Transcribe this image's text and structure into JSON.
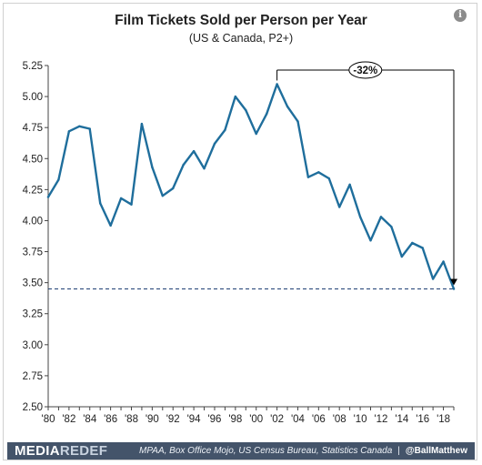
{
  "header": {
    "info_icon": "info-icon",
    "info_glyph": "i"
  },
  "chart_data": {
    "type": "line",
    "title": "Film Tickets Sold per Person per Year",
    "subtitle": "(US & Canada, P2+)",
    "xlabel": "",
    "ylabel": "",
    "xlim": [
      1980,
      2019
    ],
    "ylim": [
      2.5,
      5.25
    ],
    "yticks": [
      2.5,
      2.75,
      3.0,
      3.25,
      3.5,
      3.75,
      4.0,
      4.25,
      4.5,
      4.75,
      5.0,
      5.25
    ],
    "ytick_labels": [
      "2.50",
      "2.75",
      "3.00",
      "3.25",
      "3.50",
      "3.75",
      "4.00",
      "4.25",
      "4.50",
      "4.75",
      "5.00",
      "5.25"
    ],
    "xticks": [
      1980,
      1982,
      1984,
      1986,
      1988,
      1990,
      1992,
      1994,
      1996,
      1998,
      2000,
      2002,
      2004,
      2006,
      2008,
      2010,
      2012,
      2014,
      2016,
      2018
    ],
    "xtick_labels": [
      "'80",
      "'82",
      "'84",
      "'86",
      "'88",
      "'90",
      "'92",
      "'94",
      "'96",
      "'98",
      "'00",
      "'02",
      "'04",
      "'06",
      "'08",
      "'10",
      "'12",
      "'14",
      "'16",
      "'18"
    ],
    "grid": false,
    "series": [
      {
        "color": "#1f6e9c",
        "x": [
          1980,
          1981,
          1982,
          1983,
          1984,
          1985,
          1986,
          1987,
          1988,
          1989,
          1990,
          1991,
          1992,
          1993,
          1994,
          1995,
          1996,
          1997,
          1998,
          1999,
          2000,
          2001,
          2002,
          2003,
          2004,
          2005,
          2006,
          2007,
          2008,
          2009,
          2010,
          2011,
          2012,
          2013,
          2014,
          2015,
          2016,
          2017,
          2018,
          2019
        ],
        "values": [
          4.19,
          4.33,
          4.72,
          4.76,
          4.74,
          4.14,
          3.96,
          4.18,
          4.13,
          4.78,
          4.43,
          4.2,
          4.26,
          4.45,
          4.56,
          4.42,
          4.62,
          4.73,
          5.0,
          4.89,
          4.7,
          4.86,
          5.1,
          4.92,
          4.8,
          4.35,
          4.39,
          4.34,
          4.11,
          4.29,
          4.03,
          3.84,
          4.03,
          3.95,
          3.71,
          3.82,
          3.78,
          3.53,
          3.67,
          3.45
        ]
      }
    ],
    "reference_line": {
      "value": 3.45,
      "style": "dashed",
      "color": "#1f3f73"
    },
    "annotation": {
      "text": "-32%",
      "from_x": 2002,
      "from_value": 5.1,
      "to_x": 2019,
      "to_value": 3.45,
      "color": "#000000"
    }
  },
  "footer": {
    "logo_part1": "MEDIA",
    "logo_part2": "REDEF",
    "source": "MPAA, Box Office Mojo, US Census Bureau, Statistics Canada",
    "separator": "|",
    "handle": "@BallMatthew",
    "background": "#44546a"
  }
}
